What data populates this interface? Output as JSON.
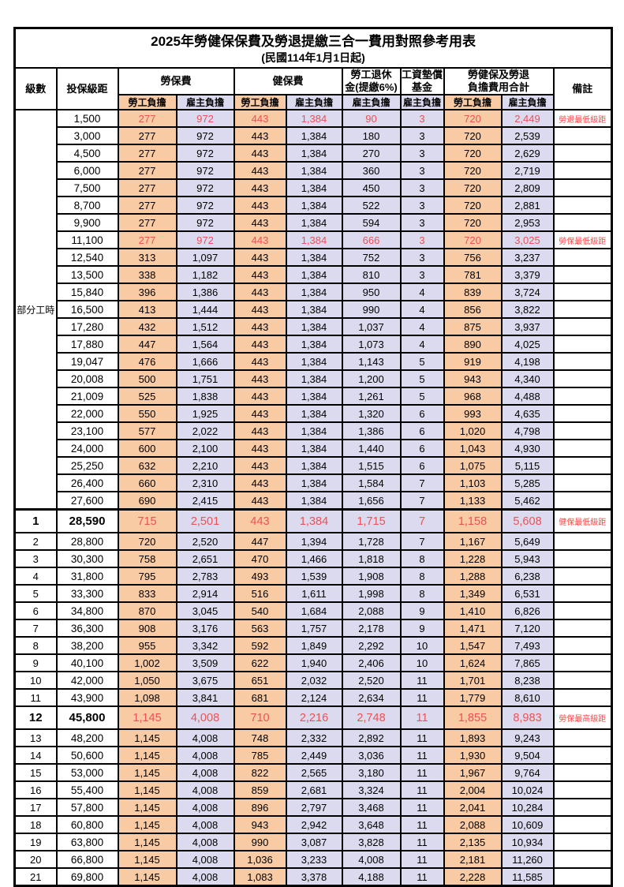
{
  "title": "2025年勞健保保費及勞退提繳三合一費用對照參考用表",
  "subtitle": "(民國114年1月1日起)",
  "colors": {
    "employee_column_bg": "#f8cba4",
    "employer_column_bg": "#dcdaee",
    "highlight_value_red": "#ea5257",
    "note_red": "#ff4545",
    "border": "#000000",
    "page_bg": "#ffffff"
  },
  "header": {
    "level": "級數",
    "bracket": "投保級距",
    "labor_fee": "勞保費",
    "health_fee": "健保費",
    "pension_line1": "勞工退休",
    "pension_line2": "金(提繳6%)",
    "wage_fund_line1": "工資墊償",
    "wage_fund_line2": "基金",
    "total_line1": "勞健保及勞退",
    "total_line2": "負擔費用合計",
    "note": "備註",
    "employee": "勞工負擔",
    "employer": "雇主負擔"
  },
  "table": {
    "part_time_label": "部分工時",
    "rows": [
      {
        "level": "",
        "bracket": "1,500",
        "values": [
          "277",
          "972",
          "443",
          "1,384",
          "90",
          "3",
          "720",
          "2,449"
        ],
        "note": "勞退最低級距",
        "red": true,
        "big": false
      },
      {
        "level": "",
        "bracket": "3,000",
        "values": [
          "277",
          "972",
          "443",
          "1,384",
          "180",
          "3",
          "720",
          "2,539"
        ],
        "note": "",
        "red": false,
        "big": false
      },
      {
        "level": "",
        "bracket": "4,500",
        "values": [
          "277",
          "972",
          "443",
          "1,384",
          "270",
          "3",
          "720",
          "2,629"
        ],
        "note": "",
        "red": false,
        "big": false
      },
      {
        "level": "",
        "bracket": "6,000",
        "values": [
          "277",
          "972",
          "443",
          "1,384",
          "360",
          "3",
          "720",
          "2,719"
        ],
        "note": "",
        "red": false,
        "big": false
      },
      {
        "level": "",
        "bracket": "7,500",
        "values": [
          "277",
          "972",
          "443",
          "1,384",
          "450",
          "3",
          "720",
          "2,809"
        ],
        "note": "",
        "red": false,
        "big": false
      },
      {
        "level": "",
        "bracket": "8,700",
        "values": [
          "277",
          "972",
          "443",
          "1,384",
          "522",
          "3",
          "720",
          "2,881"
        ],
        "note": "",
        "red": false,
        "big": false
      },
      {
        "level": "",
        "bracket": "9,900",
        "values": [
          "277",
          "972",
          "443",
          "1,384",
          "594",
          "3",
          "720",
          "2,953"
        ],
        "note": "",
        "red": false,
        "big": false
      },
      {
        "level": "",
        "bracket": "11,100",
        "values": [
          "277",
          "972",
          "443",
          "1,384",
          "666",
          "3",
          "720",
          "3,025"
        ],
        "note": "勞保最低級距",
        "red": true,
        "big": false
      },
      {
        "level": "",
        "bracket": "12,540",
        "values": [
          "313",
          "1,097",
          "443",
          "1,384",
          "752",
          "3",
          "756",
          "3,237"
        ],
        "note": "",
        "red": false,
        "big": false
      },
      {
        "level": "",
        "bracket": "13,500",
        "values": [
          "338",
          "1,182",
          "443",
          "1,384",
          "810",
          "3",
          "781",
          "3,379"
        ],
        "note": "",
        "red": false,
        "big": false
      },
      {
        "level": "",
        "bracket": "15,840",
        "values": [
          "396",
          "1,386",
          "443",
          "1,384",
          "950",
          "4",
          "839",
          "3,724"
        ],
        "note": "",
        "red": false,
        "big": false
      },
      {
        "level": "",
        "bracket": "16,500",
        "values": [
          "413",
          "1,444",
          "443",
          "1,384",
          "990",
          "4",
          "856",
          "3,822"
        ],
        "note": "",
        "red": false,
        "big": false
      },
      {
        "level": "",
        "bracket": "17,280",
        "values": [
          "432",
          "1,512",
          "443",
          "1,384",
          "1,037",
          "4",
          "875",
          "3,937"
        ],
        "note": "",
        "red": false,
        "big": false
      },
      {
        "level": "",
        "bracket": "17,880",
        "values": [
          "447",
          "1,564",
          "443",
          "1,384",
          "1,073",
          "4",
          "890",
          "4,025"
        ],
        "note": "",
        "red": false,
        "big": false
      },
      {
        "level": "",
        "bracket": "19,047",
        "values": [
          "476",
          "1,666",
          "443",
          "1,384",
          "1,143",
          "5",
          "919",
          "4,198"
        ],
        "note": "",
        "red": false,
        "big": false
      },
      {
        "level": "",
        "bracket": "20,008",
        "values": [
          "500",
          "1,751",
          "443",
          "1,384",
          "1,200",
          "5",
          "943",
          "4,340"
        ],
        "note": "",
        "red": false,
        "big": false
      },
      {
        "level": "",
        "bracket": "21,009",
        "values": [
          "525",
          "1,838",
          "443",
          "1,384",
          "1,261",
          "5",
          "968",
          "4,488"
        ],
        "note": "",
        "red": false,
        "big": false
      },
      {
        "level": "",
        "bracket": "22,000",
        "values": [
          "550",
          "1,925",
          "443",
          "1,384",
          "1,320",
          "6",
          "993",
          "4,635"
        ],
        "note": "",
        "red": false,
        "big": false
      },
      {
        "level": "",
        "bracket": "23,100",
        "values": [
          "577",
          "2,022",
          "443",
          "1,384",
          "1,386",
          "6",
          "1,020",
          "4,798"
        ],
        "note": "",
        "red": false,
        "big": false
      },
      {
        "level": "",
        "bracket": "24,000",
        "values": [
          "600",
          "2,100",
          "443",
          "1,384",
          "1,440",
          "6",
          "1,043",
          "4,930"
        ],
        "note": "",
        "red": false,
        "big": false
      },
      {
        "level": "",
        "bracket": "25,250",
        "values": [
          "632",
          "2,210",
          "443",
          "1,384",
          "1,515",
          "6",
          "1,075",
          "5,115"
        ],
        "note": "",
        "red": false,
        "big": false
      },
      {
        "level": "",
        "bracket": "26,400",
        "values": [
          "660",
          "2,310",
          "443",
          "1,384",
          "1,584",
          "7",
          "1,103",
          "5,285"
        ],
        "note": "",
        "red": false,
        "big": false
      },
      {
        "level": "",
        "bracket": "27,600",
        "values": [
          "690",
          "2,415",
          "443",
          "1,384",
          "1,656",
          "7",
          "1,133",
          "5,462"
        ],
        "note": "",
        "red": false,
        "big": false
      },
      {
        "level": "1",
        "bracket": "28,590",
        "values": [
          "715",
          "2,501",
          "443",
          "1,384",
          "1,715",
          "7",
          "1,158",
          "5,608"
        ],
        "note": "健保最低級距",
        "red": true,
        "big": true,
        "thick_top": true
      },
      {
        "level": "2",
        "bracket": "28,800",
        "values": [
          "720",
          "2,520",
          "447",
          "1,394",
          "1,728",
          "7",
          "1,167",
          "5,649"
        ],
        "note": "",
        "red": false,
        "big": false
      },
      {
        "level": "3",
        "bracket": "30,300",
        "values": [
          "758",
          "2,651",
          "470",
          "1,466",
          "1,818",
          "8",
          "1,228",
          "5,943"
        ],
        "note": "",
        "red": false,
        "big": false
      },
      {
        "level": "4",
        "bracket": "31,800",
        "values": [
          "795",
          "2,783",
          "493",
          "1,539",
          "1,908",
          "8",
          "1,288",
          "6,238"
        ],
        "note": "",
        "red": false,
        "big": false
      },
      {
        "level": "5",
        "bracket": "33,300",
        "values": [
          "833",
          "2,914",
          "516",
          "1,611",
          "1,998",
          "8",
          "1,349",
          "6,531"
        ],
        "note": "",
        "red": false,
        "big": false
      },
      {
        "level": "6",
        "bracket": "34,800",
        "values": [
          "870",
          "3,045",
          "540",
          "1,684",
          "2,088",
          "9",
          "1,410",
          "6,826"
        ],
        "note": "",
        "red": false,
        "big": false
      },
      {
        "level": "7",
        "bracket": "36,300",
        "values": [
          "908",
          "3,176",
          "563",
          "1,757",
          "2,178",
          "9",
          "1,471",
          "7,120"
        ],
        "note": "",
        "red": false,
        "big": false
      },
      {
        "level": "8",
        "bracket": "38,200",
        "values": [
          "955",
          "3,342",
          "592",
          "1,849",
          "2,292",
          "10",
          "1,547",
          "7,493"
        ],
        "note": "",
        "red": false,
        "big": false
      },
      {
        "level": "9",
        "bracket": "40,100",
        "values": [
          "1,002",
          "3,509",
          "622",
          "1,940",
          "2,406",
          "10",
          "1,624",
          "7,865"
        ],
        "note": "",
        "red": false,
        "big": false
      },
      {
        "level": "10",
        "bracket": "42,000",
        "values": [
          "1,050",
          "3,675",
          "651",
          "2,032",
          "2,520",
          "11",
          "1,701",
          "8,238"
        ],
        "note": "",
        "red": false,
        "big": false
      },
      {
        "level": "11",
        "bracket": "43,900",
        "values": [
          "1,098",
          "3,841",
          "681",
          "2,124",
          "2,634",
          "11",
          "1,779",
          "8,610"
        ],
        "note": "",
        "red": false,
        "big": false
      },
      {
        "level": "12",
        "bracket": "45,800",
        "values": [
          "1,145",
          "4,008",
          "710",
          "2,216",
          "2,748",
          "11",
          "1,855",
          "8,983"
        ],
        "note": "勞保最高級距",
        "red": true,
        "big": true
      },
      {
        "level": "13",
        "bracket": "48,200",
        "values": [
          "1,145",
          "4,008",
          "748",
          "2,332",
          "2,892",
          "11",
          "1,893",
          "9,243"
        ],
        "note": "",
        "red": false,
        "big": false
      },
      {
        "level": "14",
        "bracket": "50,600",
        "values": [
          "1,145",
          "4,008",
          "785",
          "2,449",
          "3,036",
          "11",
          "1,930",
          "9,504"
        ],
        "note": "",
        "red": false,
        "big": false
      },
      {
        "level": "15",
        "bracket": "53,000",
        "values": [
          "1,145",
          "4,008",
          "822",
          "2,565",
          "3,180",
          "11",
          "1,967",
          "9,764"
        ],
        "note": "",
        "red": false,
        "big": false
      },
      {
        "level": "16",
        "bracket": "55,400",
        "values": [
          "1,145",
          "4,008",
          "859",
          "2,681",
          "3,324",
          "11",
          "2,004",
          "10,024"
        ],
        "note": "",
        "red": false,
        "big": false
      },
      {
        "level": "17",
        "bracket": "57,800",
        "values": [
          "1,145",
          "4,008",
          "896",
          "2,797",
          "3,468",
          "11",
          "2,041",
          "10,284"
        ],
        "note": "",
        "red": false,
        "big": false
      },
      {
        "level": "18",
        "bracket": "60,800",
        "values": [
          "1,145",
          "4,008",
          "943",
          "2,942",
          "3,648",
          "11",
          "2,088",
          "10,609"
        ],
        "note": "",
        "red": false,
        "big": false
      },
      {
        "level": "19",
        "bracket": "63,800",
        "values": [
          "1,145",
          "4,008",
          "990",
          "3,087",
          "3,828",
          "11",
          "2,135",
          "10,934"
        ],
        "note": "",
        "red": false,
        "big": false
      },
      {
        "level": "20",
        "bracket": "66,800",
        "values": [
          "1,145",
          "4,008",
          "1,036",
          "3,233",
          "4,008",
          "11",
          "2,181",
          "11,260"
        ],
        "note": "",
        "red": false,
        "big": false
      },
      {
        "level": "21",
        "bracket": "69,800",
        "values": [
          "1,145",
          "4,008",
          "1,083",
          "3,378",
          "4,188",
          "11",
          "2,228",
          "11,585"
        ],
        "note": "",
        "red": false,
        "big": false
      }
    ]
  }
}
